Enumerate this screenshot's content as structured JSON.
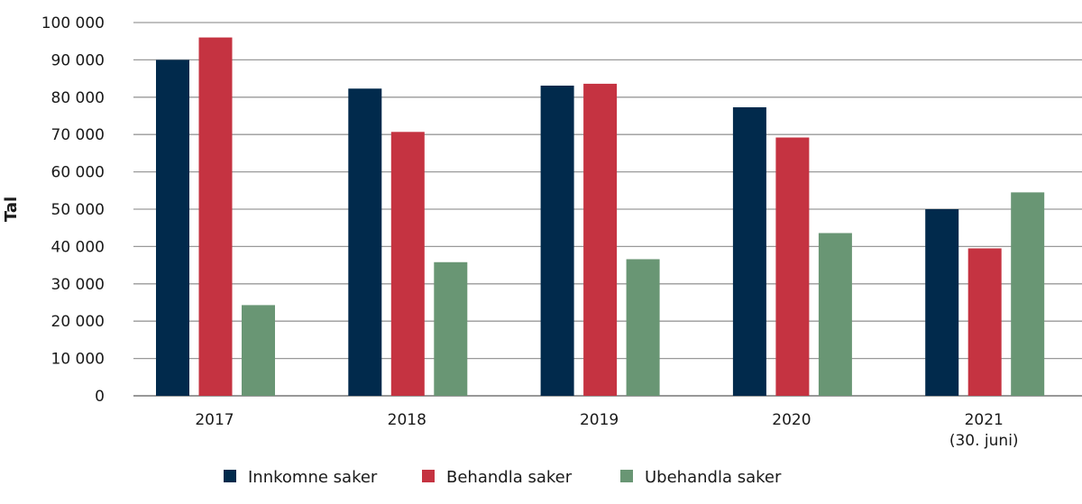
{
  "chart_data": {
    "type": "bar",
    "title": "",
    "xlabel": "",
    "ylabel": "Tal",
    "ylim": [
      0,
      100000
    ],
    "ytick_labels": [
      "0",
      "10 000",
      "20 000",
      "30 000",
      "40 000",
      "50 000",
      "60 000",
      "70 000",
      "80 000",
      "90 000",
      "100 000"
    ],
    "categories": [
      "2017",
      "2018",
      "2019",
      "2020",
      "2021"
    ],
    "category_sublabels": [
      "",
      "",
      "",
      "",
      "(30. juni)"
    ],
    "grid": true,
    "legend_position": "bottom",
    "series": [
      {
        "name": "Innkomne saker",
        "color": "#012a4c",
        "values": [
          90000,
          82300,
          83100,
          77300,
          50000
        ]
      },
      {
        "name": "Behandla saker",
        "color": "#c53341",
        "values": [
          96000,
          70700,
          83600,
          69200,
          39500
        ]
      },
      {
        "name": "Ubehandla saker",
        "color": "#699674",
        "values": [
          24300,
          35800,
          36600,
          43600,
          54500
        ]
      }
    ]
  }
}
